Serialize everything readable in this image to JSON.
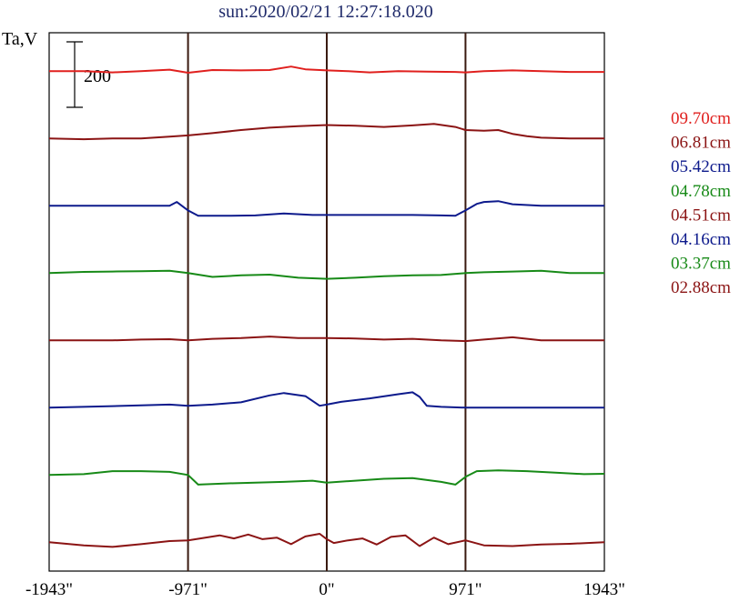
{
  "chart_data": {
    "type": "line",
    "title": "sun:2020/02/21 12:27:18.020",
    "ylabel": "Ta,V",
    "scale_bar_label": "200",
    "x_ticks": [
      {
        "value": -1943,
        "label": "-1943\""
      },
      {
        "value": -971,
        "label": "-971\""
      },
      {
        "value": 0,
        "label": "0\""
      },
      {
        "value": 971,
        "label": "971\""
      },
      {
        "value": 1943,
        "label": "1943\""
      }
    ],
    "xlim": [
      -1943,
      1943
    ],
    "vertical_markers": [
      -971,
      0,
      971
    ],
    "scale_bar_value": 200,
    "y_span": 1400,
    "legend_position": "right",
    "grid": false,
    "series": [
      {
        "name": "09.70cm",
        "color": "#e0201e",
        "offset": 1300,
        "x": [
          -1943,
          -1700,
          -1500,
          -1300,
          -1100,
          -971,
          -800,
          -600,
          -400,
          -250,
          -150,
          0,
          150,
          300,
          500,
          700,
          900,
          971,
          1100,
          1300,
          1500,
          1700,
          1943
        ],
        "y": [
          0,
          0,
          -3,
          0,
          4,
          -4,
          3,
          2,
          3,
          12,
          5,
          2,
          0,
          -3,
          0,
          -1,
          -2,
          -3,
          0,
          2,
          0,
          -2,
          -2
        ]
      },
      {
        "name": "06.81cm",
        "color": "#8b1414",
        "offset": 1125,
        "x": [
          -1943,
          -1700,
          -1500,
          -1300,
          -1100,
          -971,
          -800,
          -600,
          -400,
          -200,
          0,
          200,
          400,
          600,
          750,
          900,
          971,
          1100,
          1200,
          1300,
          1400,
          1500,
          1700,
          1943
        ],
        "y": [
          0,
          -2,
          0,
          0,
          5,
          8,
          14,
          22,
          28,
          32,
          35,
          33,
          30,
          34,
          38,
          30,
          22,
          20,
          22,
          12,
          6,
          2,
          0,
          0
        ]
      },
      {
        "name": "05.42cm",
        "color": "#0d1a8c",
        "offset": 950,
        "x": [
          -1943,
          -1700,
          -1500,
          -1300,
          -1100,
          -1050,
          -971,
          -900,
          -700,
          -500,
          -300,
          -100,
          0,
          200,
          400,
          600,
          800,
          900,
          971,
          1050,
          1100,
          1200,
          1300,
          1500,
          1700,
          1943
        ],
        "y": [
          0,
          0,
          0,
          0,
          0,
          10,
          -12,
          -26,
          -26,
          -25,
          -20,
          -24,
          -24,
          -24,
          -24,
          -24,
          -25,
          -26,
          -12,
          5,
          10,
          12,
          4,
          0,
          0,
          0
        ]
      },
      {
        "name": "04.78cm",
        "color": "#178a17",
        "offset": 775,
        "x": [
          -1943,
          -1700,
          -1500,
          -1300,
          -1100,
          -971,
          -800,
          -600,
          -400,
          -200,
          0,
          200,
          400,
          600,
          800,
          971,
          1100,
          1300,
          1500,
          1700,
          1943
        ],
        "y": [
          0,
          3,
          4,
          5,
          6,
          0,
          -10,
          -6,
          -4,
          -12,
          -15,
          -12,
          -8,
          -6,
          -5,
          0,
          2,
          4,
          6,
          0,
          0
        ]
      },
      {
        "name": "04.51cm",
        "color": "#8b1414",
        "offset": 600,
        "x": [
          -1943,
          -1700,
          -1500,
          -1300,
          -1100,
          -971,
          -800,
          -600,
          -400,
          -200,
          0,
          200,
          400,
          600,
          800,
          971,
          1100,
          1300,
          1500,
          1700,
          1943
        ],
        "y": [
          0,
          0,
          0,
          2,
          3,
          0,
          4,
          6,
          10,
          6,
          6,
          5,
          2,
          4,
          0,
          -2,
          2,
          8,
          0,
          0,
          0
        ]
      },
      {
        "name": "04.16cm",
        "color": "#0d1a8c",
        "offset": 425,
        "x": [
          -1943,
          -1700,
          -1500,
          -1300,
          -1100,
          -971,
          -800,
          -600,
          -400,
          -300,
          -150,
          -50,
          0,
          100,
          300,
          500,
          600,
          650,
          700,
          800,
          971,
          1100,
          1300,
          1500,
          1700,
          1943
        ],
        "y": [
          0,
          2,
          4,
          6,
          8,
          5,
          8,
          14,
          32,
          38,
          30,
          5,
          8,
          15,
          24,
          35,
          40,
          28,
          5,
          2,
          0,
          0,
          0,
          0,
          0,
          0
        ]
      },
      {
        "name": "03.37cm",
        "color": "#178a17",
        "offset": 250,
        "x": [
          -1943,
          -1700,
          -1500,
          -1300,
          -1100,
          -971,
          -900,
          -700,
          -500,
          -300,
          -100,
          0,
          200,
          400,
          600,
          800,
          900,
          971,
          1050,
          1200,
          1400,
          1600,
          1800,
          1943
        ],
        "y": [
          0,
          2,
          10,
          10,
          8,
          0,
          -25,
          -22,
          -20,
          -18,
          -15,
          -20,
          -15,
          -10,
          -8,
          -18,
          -25,
          -5,
          10,
          12,
          10,
          6,
          2,
          3
        ]
      },
      {
        "name": "02.88cm",
        "color": "#8b1414",
        "offset": 75,
        "x": [
          -1943,
          -1700,
          -1500,
          -1300,
          -1100,
          -971,
          -850,
          -750,
          -650,
          -550,
          -450,
          -350,
          -250,
          -150,
          -50,
          0,
          50,
          150,
          250,
          350,
          450,
          550,
          650,
          750,
          850,
          971,
          1100,
          1300,
          1500,
          1700,
          1943
        ],
        "y": [
          0,
          -8,
          -12,
          -5,
          3,
          5,
          12,
          18,
          10,
          20,
          8,
          12,
          -5,
          15,
          22,
          8,
          -2,
          5,
          10,
          -6,
          14,
          18,
          -10,
          12,
          -5,
          5,
          -8,
          -10,
          -6,
          -4,
          0
        ]
      }
    ]
  }
}
